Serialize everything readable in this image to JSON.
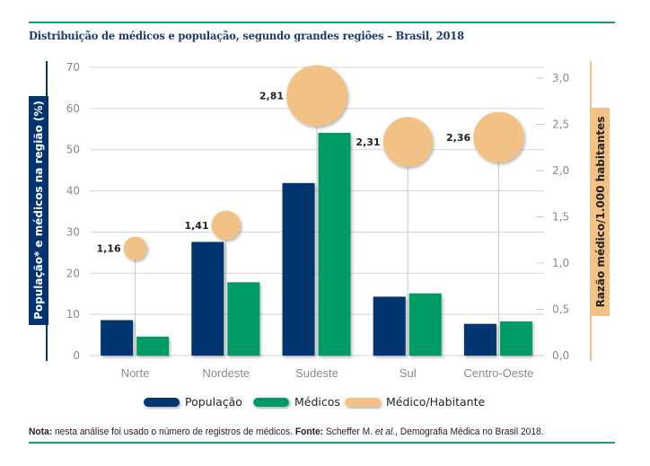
{
  "title": "Distribuição de médicos e população, segundo grandes regiões – Brasil, 2018",
  "note": {
    "nota_label": "Nota:",
    "nota_text": " nesta análise foi usado o número de registros de médicos. ",
    "fonte_label": "Fonte:",
    "fonte_text_1": " Scheffer M. ",
    "fonte_etal": "et al.",
    "fonte_text_2": ", Demografia Médica no Brasil 2018."
  },
  "colors": {
    "populacao": "#04346f",
    "medicos": "#069a65",
    "razao": "#f2c185",
    "accent_rule": "#1a9a6c"
  },
  "chart_data": {
    "type": "bar",
    "title": "Distribuição de médicos e população, segundo grandes regiões – Brasil, 2018",
    "categories": [
      "Norte",
      "Nordeste",
      "Sudeste",
      "Sul",
      "Centro-Oeste"
    ],
    "series": [
      {
        "name": "População",
        "axis": "left",
        "values": [
          8.6,
          27.6,
          41.9,
          14.3,
          7.7
        ]
      },
      {
        "name": "Médicos",
        "axis": "left",
        "values": [
          4.6,
          17.8,
          54.1,
          15.1,
          8.3
        ]
      },
      {
        "name": "Médico/Habitante",
        "axis": "right",
        "type": "bubble",
        "values": [
          1.16,
          1.41,
          2.81,
          2.31,
          2.36
        ],
        "labels": [
          "1,16",
          "1,41",
          "2,81",
          "2,31",
          "2,36"
        ]
      }
    ],
    "ylabel": "População* e médicos na região (%)",
    "ylabel_right": "Razão médico/1.000 habitantes",
    "xlabel": "",
    "ylim": [
      0,
      70
    ],
    "ylim_right": [
      0,
      3.0
    ],
    "yticks": [
      "0",
      "10",
      "20",
      "30",
      "40",
      "50",
      "60",
      "70"
    ],
    "yticks_right": [
      "0,0",
      "0,5",
      "1,0",
      "1,5",
      "2,0",
      "2,5",
      "3,0"
    ],
    "grid": true,
    "legend": [
      "População",
      "Médicos",
      "Médico/Habitante"
    ],
    "legend_placement": "bottom-center"
  }
}
